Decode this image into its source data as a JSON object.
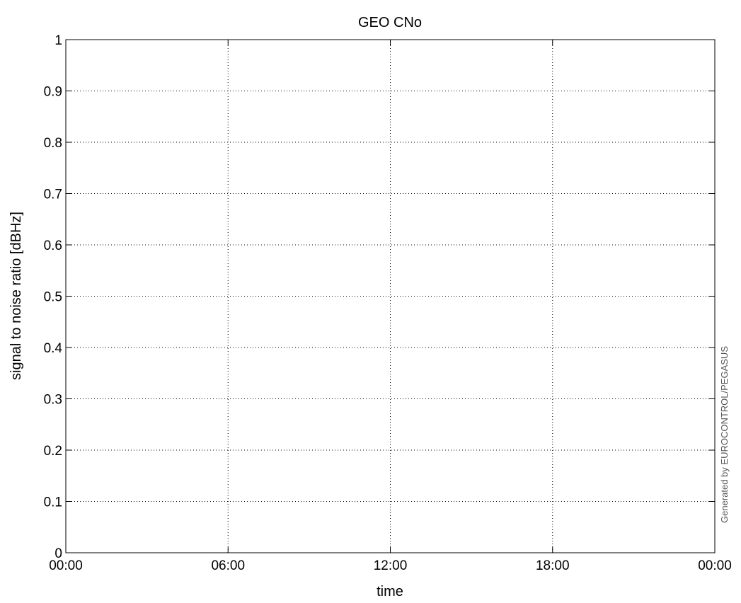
{
  "chart_data": {
    "type": "line",
    "title": "GEO CNo",
    "xlabel": "time",
    "ylabel": "signal to noise ratio [dBHz]",
    "x_ticks": [
      "00:00",
      "06:00",
      "12:00",
      "18:00",
      "00:00"
    ],
    "y_ticks": [
      "0",
      "0.1",
      "0.2",
      "0.3",
      "0.4",
      "0.5",
      "0.6",
      "0.7",
      "0.8",
      "0.9",
      "1"
    ],
    "xlim_hours": [
      0,
      24
    ],
    "ylim": [
      0,
      1
    ],
    "grid": true,
    "grid_style": "dotted",
    "series": []
  },
  "watermark": "Generated by EUROCONTROL/PEGASUS",
  "colors": {
    "axes": "#000000",
    "grid": "#000000",
    "background": "#ffffff",
    "watermark": "#555555"
  }
}
